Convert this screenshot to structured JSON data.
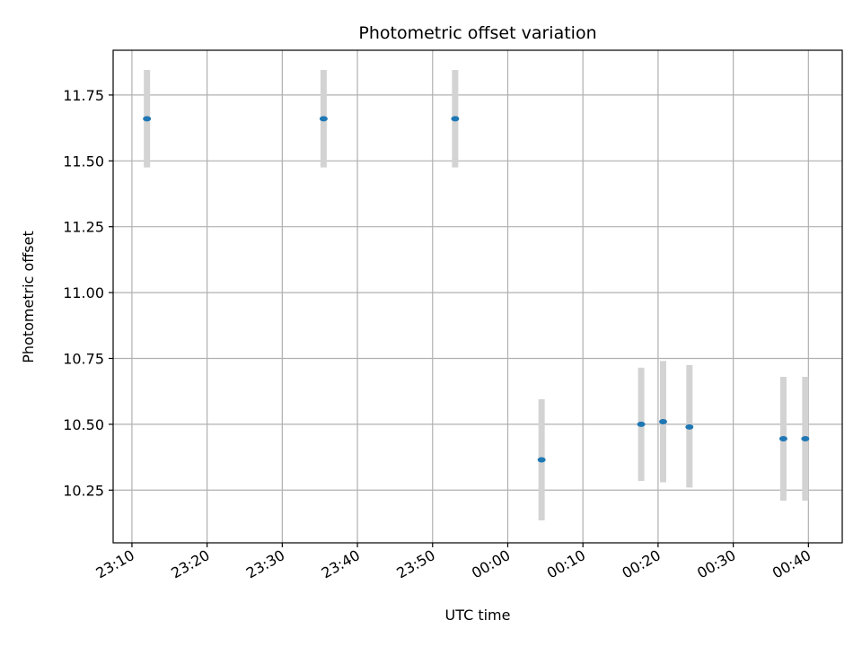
{
  "chart_data": {
    "type": "scatter",
    "title": "Photometric offset variation",
    "xlabel": "UTC time",
    "ylabel": "Photometric offset",
    "x_ticks": [
      "23:10",
      "23:20",
      "23:30",
      "23:40",
      "23:50",
      "00:00",
      "00:10",
      "00:20",
      "00:30",
      "00:40"
    ],
    "y_ticks": [
      "10.25",
      "10.50",
      "10.75",
      "11.00",
      "11.25",
      "11.50",
      "11.75"
    ],
    "xlim": [
      "23:07:30",
      "00:44:30"
    ],
    "ylim": [
      10.05,
      11.92
    ],
    "grid": true,
    "points": [
      {
        "time": "23:12:00",
        "y": 11.66,
        "err_low": 11.475,
        "err_high": 11.845
      },
      {
        "time": "23:35:30",
        "y": 11.66,
        "err_low": 11.475,
        "err_high": 11.845
      },
      {
        "time": "23:53:00",
        "y": 11.66,
        "err_low": 11.475,
        "err_high": 11.845
      },
      {
        "time": "00:04:30",
        "y": 10.365,
        "err_low": 10.135,
        "err_high": 10.595
      },
      {
        "time": "00:17:45",
        "y": 10.5,
        "err_low": 10.285,
        "err_high": 10.715
      },
      {
        "time": "00:20:40",
        "y": 10.51,
        "err_low": 10.28,
        "err_high": 10.74
      },
      {
        "time": "00:24:10",
        "y": 10.49,
        "err_low": 10.26,
        "err_high": 10.725
      },
      {
        "time": "00:36:40",
        "y": 10.445,
        "err_low": 10.21,
        "err_high": 10.68
      },
      {
        "time": "00:39:35",
        "y": 10.445,
        "err_low": 10.21,
        "err_high": 10.68
      }
    ],
    "colors": {
      "point": "#1f77b4",
      "errorbar": "#d3d3d3",
      "grid": "#b0b0b0",
      "axes": "#000000"
    }
  }
}
